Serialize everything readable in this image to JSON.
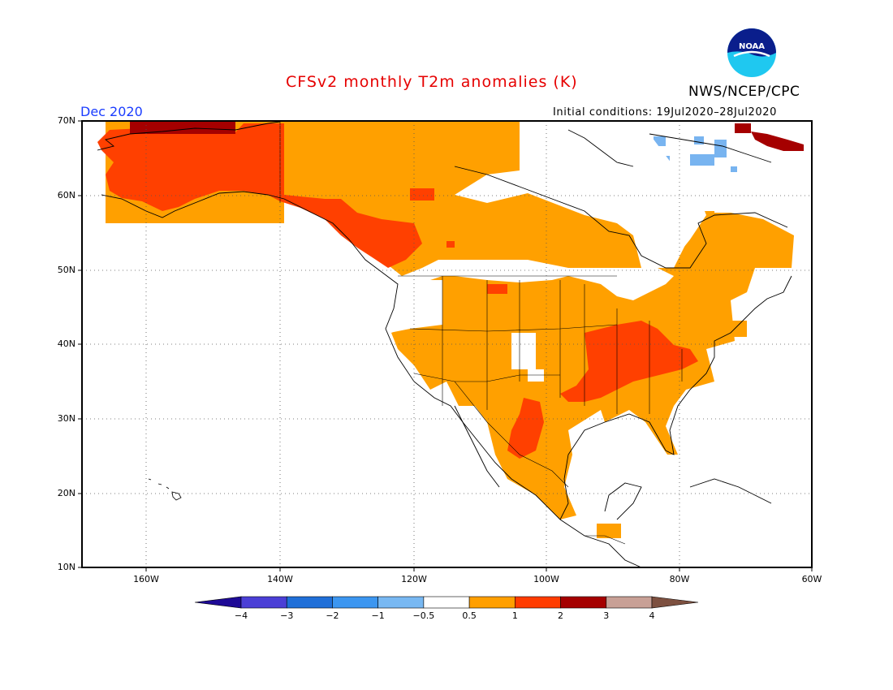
{
  "header": {
    "title": "CFSv2 monthly T2m anomalies (K)",
    "agency": "NWS/NCEP/CPC",
    "month": "Dec 2020",
    "initial_conditions": "Initial conditions: 19Jul2020–28Jul2020",
    "logo_text": "NOAA"
  },
  "map": {
    "lon_range": [
      -170,
      -60
    ],
    "lat_range": [
      10,
      70
    ],
    "lat_labels": [
      "70N",
      "60N",
      "50N",
      "40N",
      "30N",
      "20N",
      "10N"
    ],
    "lon_labels": [
      "160W",
      "140W",
      "120W",
      "100W",
      "80W",
      "60W"
    ],
    "grid": "dotted",
    "regions": [
      {
        "name": "Alaska",
        "anomaly_class": "1 to 2"
      },
      {
        "name": "Northern Alaska coast",
        "anomaly_class": "2 to 3"
      },
      {
        "name": "Western Canada",
        "anomaly_class": "0.5 to 1"
      },
      {
        "name": "Central/Eastern USA",
        "anomaly_class": "0.5 to 1"
      },
      {
        "name": "Mississippi/Ohio Valley",
        "anomaly_class": "1 to 2"
      },
      {
        "name": "Texas/Northern Mexico patches",
        "anomaly_class": "1 to 2"
      },
      {
        "name": "Baffin Island patches",
        "anomaly_class": "-1 to -0.5"
      },
      {
        "name": "Greenland edge",
        "anomaly_class": "2 to 3"
      },
      {
        "name": "Hudson Bay / Quebec",
        "anomaly_class": "-0.5 to 0.5"
      }
    ]
  },
  "colorbar": {
    "labels": [
      "−4",
      "−3",
      "−2",
      "−1",
      "−0.5",
      "0.5",
      "1",
      "2",
      "3",
      "4"
    ],
    "colors": [
      "#1e0a96",
      "#4b3fd6",
      "#1f6fd8",
      "#3c96f0",
      "#78b8f2",
      "#ffffff",
      "#ff9f00",
      "#ff3c00",
      "#a50000",
      "#c8a096",
      "#7d5040"
    ]
  },
  "colors": {
    "title": "#e60000",
    "month": "#1a3cff",
    "orange": "#ffa000",
    "red": "#ff4000",
    "darkred": "#a50000",
    "lightblue": "#78b4f0"
  }
}
